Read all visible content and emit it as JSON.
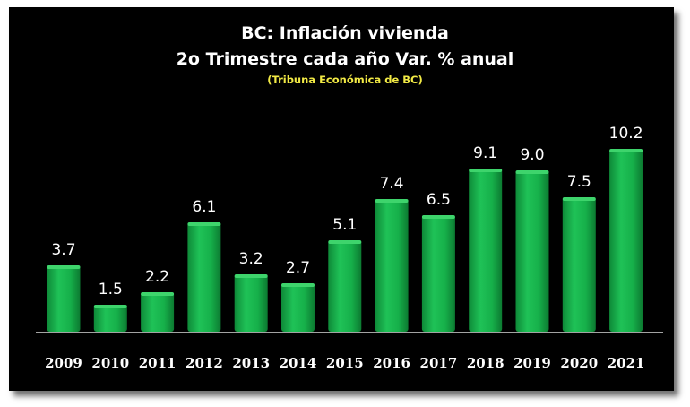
{
  "chart_data": {
    "type": "bar",
    "title_line1": "BC: Inflación vivienda",
    "title_line2": "2o Trimestre cada año Var. % anual",
    "subtitle": "(Tribuna Económica de BC)",
    "categories": [
      "2009",
      "2010",
      "2011",
      "2012",
      "2013",
      "2014",
      "2015",
      "2016",
      "2017",
      "2018",
      "2019",
      "2020",
      "2021"
    ],
    "values": [
      3.7,
      1.5,
      2.2,
      6.1,
      3.2,
      2.7,
      5.1,
      7.4,
      6.5,
      9.1,
      9.0,
      7.5,
      10.2
    ],
    "value_labels": [
      "3.7",
      "1.5",
      "2.2",
      "6.1",
      "3.2",
      "2.7",
      "5.1",
      "7.4",
      "6.5",
      "9.1",
      "9.0",
      "7.5",
      "10.2"
    ],
    "xlabel": "",
    "ylabel": "",
    "ylim": [
      0,
      12
    ],
    "grid": false,
    "legend": "none",
    "colors": {
      "background": "#000000",
      "bar": "#16b04a",
      "bar_highlight": "#3ed46c",
      "title": "#ffffff",
      "subtitle": "#f2ea45",
      "axis": "#d9d9d9"
    }
  }
}
